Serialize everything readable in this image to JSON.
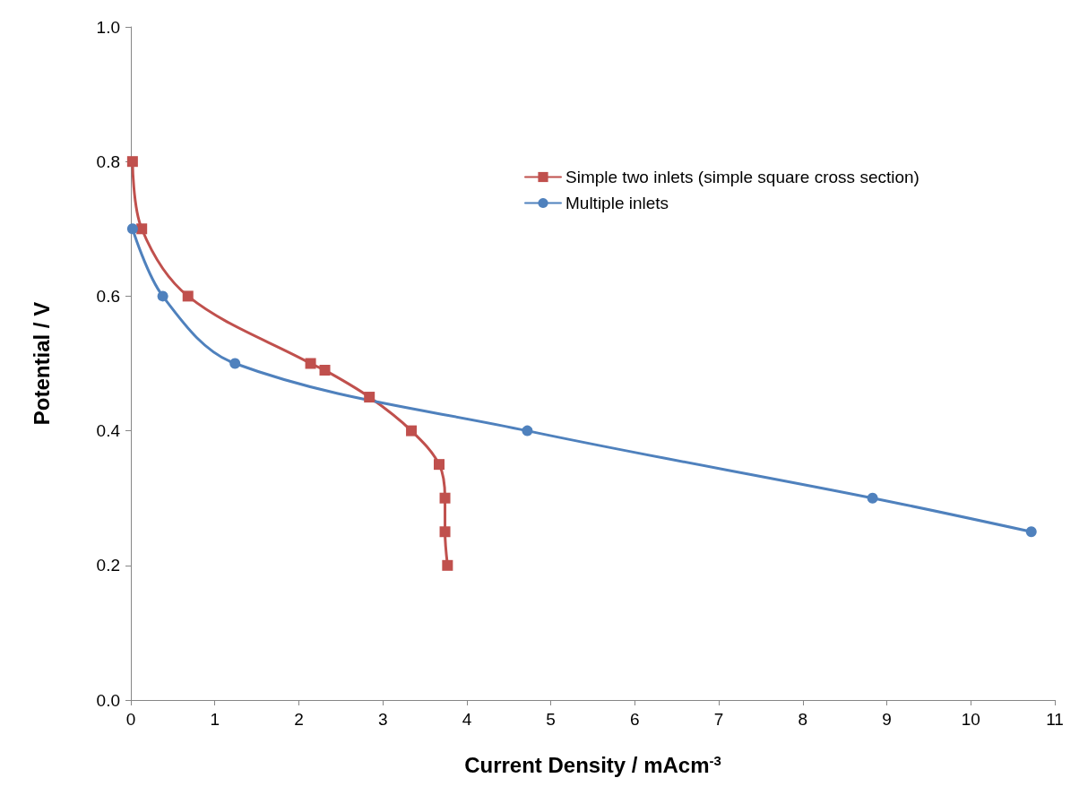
{
  "chart_data": {
    "type": "line",
    "xlabel": "Current Density / mAcm$^{-3}$",
    "ylabel": "Potential / V",
    "xlim": [
      0,
      11
    ],
    "xticks": [
      0,
      1,
      2,
      3,
      4,
      5,
      6,
      7,
      8,
      9,
      10,
      11
    ],
    "ylim": [
      0,
      1
    ],
    "yticks": [
      {
        "value": 0,
        "label": "0.0"
      },
      {
        "value": 0.2,
        "label": "0.2"
      },
      {
        "value": 0.4,
        "label": "0.4"
      },
      {
        "value": 0.6,
        "label": "0.6"
      },
      {
        "value": 0.8,
        "label": "0.8"
      },
      {
        "value": 1,
        "label": "1.0"
      }
    ],
    "grid": false,
    "legend": "top right",
    "series": [
      {
        "name": "Simple two inlets (simple square cross section)",
        "color": "#c0504d",
        "marker": "square",
        "x": [
          0.02,
          0.13,
          0.68,
          2.14,
          2.31,
          2.84,
          3.34,
          3.67,
          3.74,
          3.74,
          3.77
        ],
        "values": [
          0.8,
          0.7,
          0.6,
          0.5,
          0.49,
          0.45,
          0.4,
          0.35,
          0.3,
          0.25,
          0.2
        ]
      },
      {
        "name": "Multiple inlets",
        "color": "#4f81bd",
        "marker": "circle",
        "x": [
          0.02,
          0.38,
          1.24,
          4.72,
          8.83,
          10.72
        ],
        "values": [
          0.7,
          0.6,
          0.5,
          0.4,
          0.3,
          0.25
        ]
      }
    ]
  }
}
